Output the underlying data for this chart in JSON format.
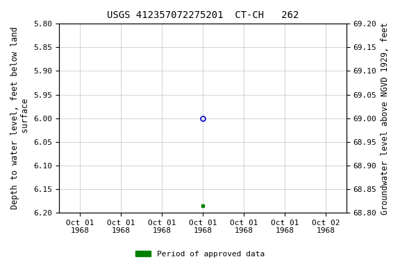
{
  "title": "USGS 412357072275201  CT-CH   262",
  "ylabel_left": "Depth to water level, feet below land\n surface",
  "ylabel_right": "Groundwater level above NGVD 1929, feet",
  "ylim_left": [
    6.2,
    5.8
  ],
  "ylim_right": [
    68.8,
    69.2
  ],
  "yticks_left": [
    5.8,
    5.85,
    5.9,
    5.95,
    6.0,
    6.05,
    6.1,
    6.15,
    6.2
  ],
  "yticks_right": [
    68.8,
    68.85,
    68.9,
    68.95,
    69.0,
    69.05,
    69.1,
    69.15,
    69.2
  ],
  "ytick_labels_left": [
    "5.80",
    "5.85",
    "5.90",
    "5.95",
    "6.00",
    "6.05",
    "6.10",
    "6.15",
    "6.20"
  ],
  "ytick_labels_right": [
    "68.80",
    "68.85",
    "68.90",
    "68.95",
    "69.00",
    "69.05",
    "69.10",
    "69.15",
    "69.20"
  ],
  "x_ticks": [
    0,
    1,
    2,
    3,
    4,
    5,
    6
  ],
  "x_labels": [
    "Oct 01\n1968",
    "Oct 01\n1968",
    "Oct 01\n1968",
    "Oct 01\n1968",
    "Oct 01\n1968",
    "Oct 01\n1968",
    "Oct 02\n1968"
  ],
  "xlim": [
    -0.5,
    6.5
  ],
  "point_x_open": 3,
  "point_y_open": 6.0,
  "point_x_filled": 3,
  "point_y_filled": 6.185,
  "open_marker_color": "#0000cc",
  "filled_marker_color": "#008000",
  "legend_label": "Period of approved data",
  "legend_color": "#008000",
  "background_color": "#ffffff",
  "grid_color": "#c0c0c0",
  "title_fontsize": 10,
  "axis_label_fontsize": 8.5,
  "tick_fontsize": 8,
  "font_family": "monospace"
}
